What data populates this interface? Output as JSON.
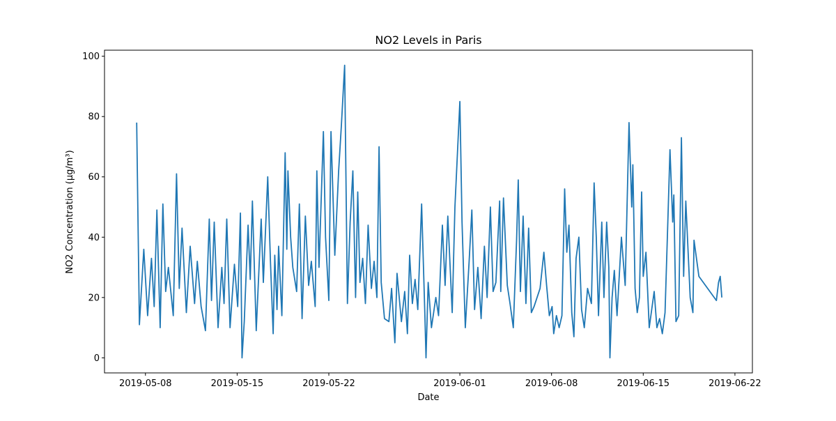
{
  "chart_data": {
    "type": "line",
    "title": "NO2 Levels in Paris",
    "x_label": "Date",
    "y_label": "NO2 Concentration (µg/m³)",
    "x": [
      "2019-05-07 08:00",
      "2019-05-07 13:00",
      "2019-05-07 21:00",
      "2019-05-08 04:00",
      "2019-05-08 11:00",
      "2019-05-08 16:00",
      "2019-05-08 21:00",
      "2019-05-09 03:00",
      "2019-05-09 08:00",
      "2019-05-09 13:00",
      "2019-05-09 18:00",
      "2019-05-10 03:00",
      "2019-05-10 09:00",
      "2019-05-10 14:00",
      "2019-05-10 19:00",
      "2019-05-11 03:00",
      "2019-05-11 10:00",
      "2019-05-11 18:00",
      "2019-05-11 23:00",
      "2019-05-12 06:00",
      "2019-05-12 14:00",
      "2019-05-12 21:00",
      "2019-05-13 01:00",
      "2019-05-13 06:00",
      "2019-05-13 13:00",
      "2019-05-13 20:00",
      "2019-05-14 00:00",
      "2019-05-14 05:00",
      "2019-05-14 11:00",
      "2019-05-14 19:00",
      "2019-05-15 01:00",
      "2019-05-15 06:00",
      "2019-05-15 09:00",
      "2019-05-15 13:00",
      "2019-05-15 20:00",
      "2019-05-16 00:00",
      "2019-05-16 04:00",
      "2019-05-16 11:00",
      "2019-05-16 20:00",
      "2019-05-17 00:00",
      "2019-05-17 08:00",
      "2019-05-17 13:00",
      "2019-05-17 18:00",
      "2019-05-17 21:00",
      "2019-05-18 01:00",
      "2019-05-18 04:00",
      "2019-05-18 10:00",
      "2019-05-18 16:00",
      "2019-05-18 19:00",
      "2019-05-18 21:00",
      "2019-05-19 02:00",
      "2019-05-19 06:00",
      "2019-05-19 13:00",
      "2019-05-19 18:00",
      "2019-05-19 23:00",
      "2019-05-20 05:00",
      "2019-05-20 11:00",
      "2019-05-20 16:00",
      "2019-05-20 23:00",
      "2019-05-21 02:00",
      "2019-05-21 06:00",
      "2019-05-21 14:00",
      "2019-05-21 18:00",
      "2019-05-22 00:00",
      "2019-05-22 04:00",
      "2019-05-22 11:00",
      "2019-05-22 18:00",
      "2019-05-22 23:00",
      "2019-05-23 05:00",
      "2019-05-23 10:00",
      "2019-05-23 15:00",
      "2019-05-23 20:00",
      "2019-05-24 01:00",
      "2019-05-24 05:00",
      "2019-05-24 09:00",
      "2019-05-24 14:00",
      "2019-05-24 19:00",
      "2019-05-25 00:00",
      "2019-05-25 06:00",
      "2019-05-25 11:00",
      "2019-05-25 16:00",
      "2019-05-25 20:00",
      "2019-05-26 00:00",
      "2019-05-26 06:00",
      "2019-05-26 14:00",
      "2019-05-26 19:00",
      "2019-05-27 01:00",
      "2019-05-27 05:00",
      "2019-05-27 13:00",
      "2019-05-27 19:00",
      "2019-05-28 00:00",
      "2019-05-28 04:00",
      "2019-05-28 09:00",
      "2019-05-28 14:00",
      "2019-05-28 19:00",
      "2019-05-29 02:00",
      "2019-05-29 08:00",
      "2019-05-29 10:00",
      "2019-05-29 14:00",
      "2019-05-29 20:00",
      "2019-05-30 04:00",
      "2019-05-30 09:00",
      "2019-05-30 16:00",
      "2019-05-30 21:00",
      "2019-05-31 02:00",
      "2019-05-31 10:00",
      "2019-05-31 15:00",
      "2019-06-01 00:00",
      "2019-06-01 04:00",
      "2019-06-01 10:00",
      "2019-06-01 17:00",
      "2019-06-01 22:00",
      "2019-06-02 03:00",
      "2019-06-02 09:00",
      "2019-06-02 15:00",
      "2019-06-02 21:00",
      "2019-06-03 02:00",
      "2019-06-03 08:00",
      "2019-06-03 13:00",
      "2019-06-03 18:00",
      "2019-06-04 01:00",
      "2019-06-04 03:00",
      "2019-06-04 08:00",
      "2019-06-04 15:00",
      "2019-06-04 20:00",
      "2019-06-05 02:00",
      "2019-06-05 08:00",
      "2019-06-05 11:00",
      "2019-06-05 15:00",
      "2019-06-05 20:00",
      "2019-06-06 01:00",
      "2019-06-06 06:00",
      "2019-06-06 11:00",
      "2019-06-06 16:00",
      "2019-06-07 03:00",
      "2019-06-07 10:00",
      "2019-06-07 15:00",
      "2019-06-07 20:00",
      "2019-06-08 01:00",
      "2019-06-08 04:00",
      "2019-06-08 09:00",
      "2019-06-08 14:00",
      "2019-06-08 19:00",
      "2019-06-09 00:00",
      "2019-06-09 04:00",
      "2019-06-09 08:00",
      "2019-06-09 13:00",
      "2019-06-09 17:00",
      "2019-06-09 21:00",
      "2019-06-10 02:00",
      "2019-06-10 07:00",
      "2019-06-10 12:00",
      "2019-06-10 18:00",
      "2019-06-11 01:00",
      "2019-06-11 06:00",
      "2019-06-11 10:00",
      "2019-06-11 14:00",
      "2019-06-11 20:00",
      "2019-06-12 00:00",
      "2019-06-12 05:00",
      "2019-06-12 09:00",
      "2019-06-12 11:00",
      "2019-06-12 15:00",
      "2019-06-12 19:00",
      "2019-06-13 00:00",
      "2019-06-13 08:00",
      "2019-06-13 15:00",
      "2019-06-13 22:00",
      "2019-06-14 03:00",
      "2019-06-14 05:00",
      "2019-06-14 09:00",
      "2019-06-14 13:00",
      "2019-06-14 17:00",
      "2019-06-14 21:00",
      "2019-06-15 00:00",
      "2019-06-15 05:00",
      "2019-06-15 11:00",
      "2019-06-15 20:00",
      "2019-06-16 01:00",
      "2019-06-16 06:00",
      "2019-06-16 11:00",
      "2019-06-16 16:00",
      "2019-06-16 21:00",
      "2019-06-17 01:00",
      "2019-06-17 06:00",
      "2019-06-17 08:00",
      "2019-06-17 12:00",
      "2019-06-17 17:00",
      "2019-06-17 22:00",
      "2019-06-18 02:00",
      "2019-06-18 06:00",
      "2019-06-18 14:00",
      "2019-06-18 19:00",
      "2019-06-18 21:00",
      "2019-06-19 06:00",
      "2019-06-20 14:00",
      "2019-06-20 18:00",
      "2019-06-20 21:00",
      "2019-06-21 00:00"
    ],
    "series": [
      {
        "name": "NO2",
        "color": "#1f77b4",
        "values": [
          78,
          11,
          36,
          14,
          33,
          17,
          49,
          10,
          51,
          22,
          30,
          14,
          61,
          23,
          43,
          15,
          37,
          18,
          32,
          17,
          9,
          46,
          19,
          45,
          10,
          30,
          18,
          46,
          10,
          31,
          17,
          48,
          0,
          12,
          44,
          26,
          52,
          9,
          46,
          25,
          60,
          32,
          8,
          34,
          16,
          37,
          14,
          68,
          36,
          62,
          40,
          30,
          22,
          51,
          13,
          47,
          24,
          32,
          17,
          62,
          30,
          75,
          40,
          19,
          75,
          34,
          62,
          77,
          97,
          18,
          45,
          62,
          20,
          55,
          25,
          33,
          18,
          44,
          23,
          32,
          20,
          70,
          25,
          13,
          12,
          23,
          5,
          28,
          12,
          22,
          8,
          34,
          18,
          26,
          16,
          51,
          14,
          0,
          25,
          10,
          20,
          14,
          44,
          24,
          47,
          15,
          50,
          85,
          45,
          10,
          32,
          49,
          16,
          30,
          13,
          37,
          20,
          50,
          22,
          25,
          52,
          22,
          53,
          24,
          18,
          10,
          39,
          59,
          22,
          47,
          18,
          43,
          15,
          17,
          23,
          35,
          24,
          14,
          17,
          8,
          14,
          10,
          14,
          56,
          35,
          44,
          15,
          7,
          33,
          40,
          16,
          10,
          23,
          18,
          58,
          40,
          14,
          45,
          20,
          45,
          30,
          0,
          20,
          29,
          14,
          40,
          24,
          78,
          50,
          64,
          23,
          15,
          20,
          55,
          27,
          35,
          10,
          22,
          10,
          13,
          8,
          15,
          45,
          69,
          45,
          54,
          12,
          14,
          73,
          27,
          52,
          20,
          15,
          39,
          27,
          19,
          25,
          27,
          20
        ]
      }
    ],
    "xlim": [
      "2019-05-04 21:00",
      "2019-06-23 08:00"
    ],
    "xticks": [
      "2019-05-08",
      "2019-05-15",
      "2019-05-22",
      "2019-06-01",
      "2019-06-08",
      "2019-06-15",
      "2019-06-22"
    ],
    "ylim": [
      -5,
      102
    ],
    "yticks": [
      0,
      20,
      40,
      60,
      80,
      100
    ],
    "grid": false
  }
}
